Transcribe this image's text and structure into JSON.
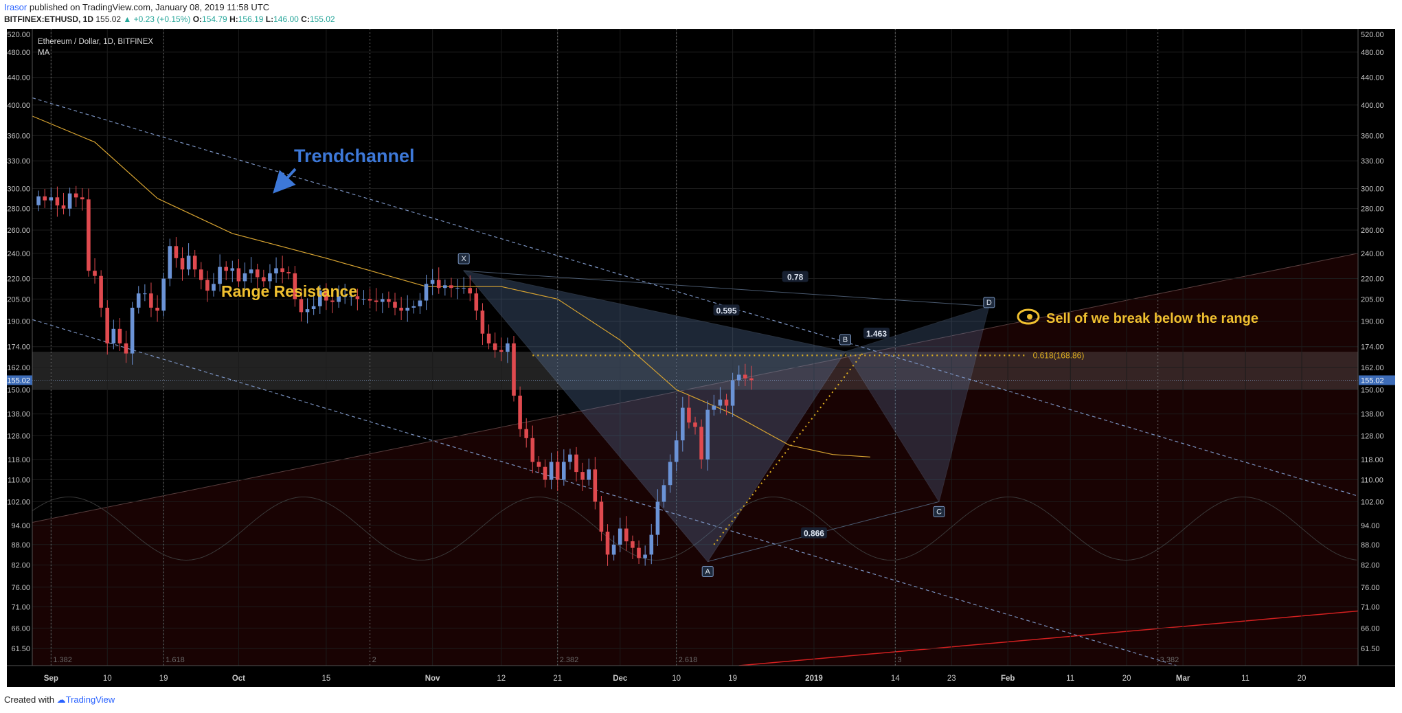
{
  "header": {
    "author": "Irasor",
    "published_text": "published on TradingView.com, January 08, 2019 11:58 UTC",
    "symbol": "BITFINEX:ETHUSD, 1D",
    "last": "155.02",
    "change": "▲ +0.23 (+0.15%)",
    "o_label": "O:",
    "o": "154.79",
    "h_label": "H:",
    "h": "156.19",
    "l_label": "L:",
    "l": "146.00",
    "c_label": "C:",
    "c": "155.02"
  },
  "legend": {
    "title": "Ethereum / Dollar, 1D, BITFINEX",
    "ma": "MA"
  },
  "footer": {
    "created_with": "Created with",
    "brand": "TradingView"
  },
  "colors": {
    "background": "#000000",
    "up": "#6b93d6",
    "down": "#e04a4f",
    "ma": "#d8a431",
    "annotation_blue": "#3d78d8",
    "annotation_yellow": "#f0c030",
    "fib": "#e0b020"
  },
  "chart_data": {
    "type": "candlestick",
    "title": "Ethereum / Dollar, 1D, BITFINEX",
    "y_scale": "log",
    "ylim": [
      58,
      520
    ],
    "y_ticks": [
      520,
      480,
      440,
      400,
      360,
      330,
      300,
      280,
      260,
      240,
      220,
      205,
      190,
      174,
      162,
      150,
      138,
      128,
      118,
      110,
      102,
      94,
      88,
      82,
      76,
      71,
      66,
      61.5
    ],
    "y_tick_labels": [
      "520.00",
      "480.00",
      "440.00",
      "400.00",
      "360.00",
      "330.00",
      "300.00",
      "280.00",
      "260.00",
      "240.00",
      "220.00",
      "205.00",
      "190.00",
      "174.00",
      "162.00",
      "150.00",
      "138.00",
      "128.00",
      "118.00",
      "110.00",
      "102.00",
      "94.00",
      "88.00",
      "82.00",
      "76.00",
      "71.00",
      "66.00",
      "61.50"
    ],
    "x_start": "2018-08-29",
    "x_end": "2019-03-29",
    "x_tick_labels": [
      {
        "label": "Sep",
        "date": "2018-09-01",
        "bold": true
      },
      {
        "label": "10",
        "date": "2018-09-10"
      },
      {
        "label": "19",
        "date": "2018-09-19"
      },
      {
        "label": "Oct",
        "date": "2018-10-01",
        "bold": true
      },
      {
        "label": "15",
        "date": "2018-10-15"
      },
      {
        "label": "Nov",
        "date": "2018-11-01",
        "bold": true
      },
      {
        "label": "12",
        "date": "2018-11-12"
      },
      {
        "label": "21",
        "date": "2018-11-21"
      },
      {
        "label": "Dec",
        "date": "2018-12-01",
        "bold": true
      },
      {
        "label": "10",
        "date": "2018-12-10"
      },
      {
        "label": "19",
        "date": "2018-12-19"
      },
      {
        "label": "2019",
        "date": "2019-01-01",
        "bold": true
      },
      {
        "label": "14",
        "date": "2019-01-14"
      },
      {
        "label": "23",
        "date": "2019-01-23"
      },
      {
        "label": "Feb",
        "date": "2019-02-01",
        "bold": true
      },
      {
        "label": "11",
        "date": "2019-02-11"
      },
      {
        "label": "20",
        "date": "2019-02-20"
      },
      {
        "label": "Mar",
        "date": "2019-03-01",
        "bold": true
      },
      {
        "label": "11",
        "date": "2019-03-11"
      },
      {
        "label": "20",
        "date": "2019-03-20"
      }
    ],
    "last_price": 155.02,
    "candles_start": "2018-08-30",
    "closes": [
      292,
      288,
      291,
      283,
      280,
      295,
      291,
      289,
      226,
      222,
      199,
      176,
      185,
      176,
      170,
      199,
      209,
      209,
      199,
      197,
      220,
      246,
      236,
      227,
      238,
      227,
      219,
      211,
      216,
      229,
      226,
      228,
      218,
      224,
      227,
      221,
      218,
      224,
      228,
      225,
      224,
      205,
      196,
      198,
      200,
      211,
      204,
      203,
      207,
      207,
      207,
      205,
      205,
      204,
      203,
      205,
      203,
      199,
      197,
      199,
      200,
      204,
      216,
      219,
      213,
      215,
      213,
      213,
      213,
      209,
      197,
      182,
      176,
      172,
      171,
      176,
      147,
      131,
      127,
      117,
      115,
      110,
      117,
      110,
      117,
      120,
      113,
      110,
      114,
      102,
      92,
      85,
      88,
      93,
      89,
      87,
      84,
      85,
      91,
      102,
      108,
      117,
      126,
      141,
      134,
      132,
      118,
      140,
      142,
      145,
      142,
      155,
      158,
      156,
      155
    ],
    "ma": {
      "name": "MA",
      "start": "2018-08-29",
      "end": "2019-01-10",
      "points": [
        {
          "date": "2018-08-29",
          "value": 385
        },
        {
          "date": "2018-09-08",
          "value": 352
        },
        {
          "date": "2018-09-18",
          "value": 290
        },
        {
          "date": "2018-09-30",
          "value": 257
        },
        {
          "date": "2018-10-15",
          "value": 236
        },
        {
          "date": "2018-10-31",
          "value": 214
        },
        {
          "date": "2018-11-12",
          "value": 214
        },
        {
          "date": "2018-11-21",
          "value": 205
        },
        {
          "date": "2018-12-01",
          "value": 178
        },
        {
          "date": "2018-12-10",
          "value": 150
        },
        {
          "date": "2018-12-19",
          "value": 138
        },
        {
          "date": "2018-12-28",
          "value": 124
        },
        {
          "date": "2019-01-04",
          "value": 120
        },
        {
          "date": "2019-01-10",
          "value": 119
        }
      ]
    },
    "annotations": {
      "trendchannel_label": "Trendchannel",
      "range_label": "Range Resistance",
      "sell_label": "Sell of we break below the range",
      "fib_label": "0.618(168.86)",
      "fib_value": 168.86,
      "range_zone": [
        150,
        171
      ],
      "pattern_points": [
        {
          "label": "X",
          "date": "2018-11-06",
          "price": 226
        },
        {
          "label": "A",
          "date": "2018-12-15",
          "price": 83
        },
        {
          "label": "B",
          "date": "2019-01-06",
          "price": 171
        },
        {
          "label": "C",
          "date": "2019-01-21",
          "price": 102
        },
        {
          "label": "D",
          "date": "2019-01-29",
          "price": 200
        }
      ],
      "ratios": [
        "0.78",
        "0.595",
        "1.463",
        "0.866"
      ],
      "cycle_labels": [
        "1.382",
        "1.618",
        "2",
        "2.382",
        "2.618",
        "3",
        "3.382"
      ]
    }
  }
}
